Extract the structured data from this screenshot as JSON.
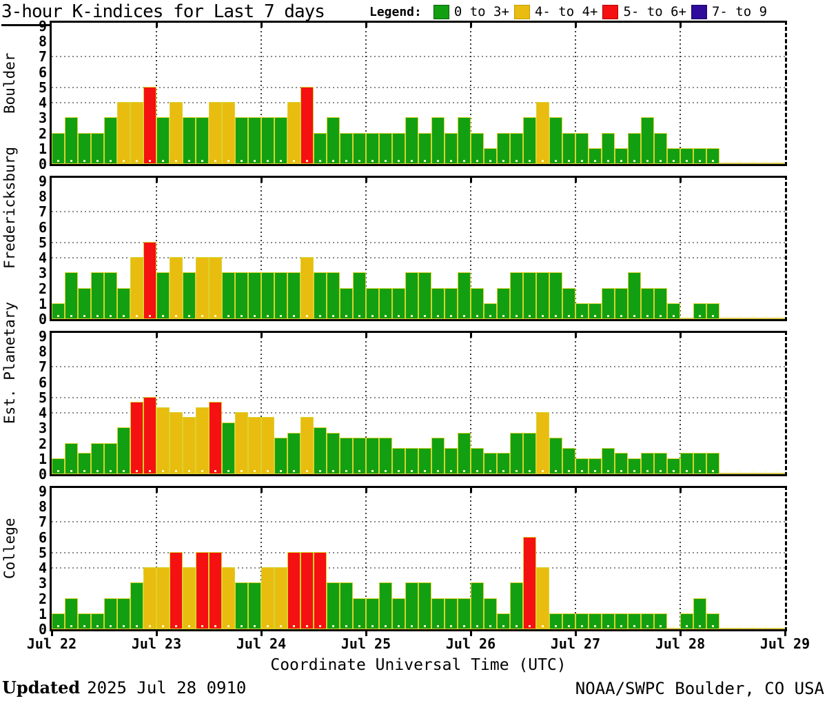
{
  "chart_data": {
    "type": "bar",
    "title": "3-hour K-indices for Last 7 days",
    "xlabel": "Coordinate Universal Time (UTC)",
    "x_ticks": [
      "Jul 22",
      "Jul 23",
      "Jul 24",
      "Jul 25",
      "Jul 26",
      "Jul 27",
      "Jul 28",
      "Jul 29"
    ],
    "y_ticks": [
      "9",
      "8",
      "7",
      "6",
      "5",
      "4",
      "3",
      "2",
      "1",
      "0"
    ],
    "ylim": [
      0,
      9
    ],
    "hgrid_at": [
      4,
      5,
      7
    ],
    "intervals_per_day": 8,
    "grid": "dotted",
    "legend": {
      "label": "Legend:",
      "items": [
        {
          "label": "0 to 3+",
          "color": "#12a012",
          "border": "#0a5c0a"
        },
        {
          "label": "4- to 4+",
          "color": "#e8bd10",
          "border": "#c09a00"
        },
        {
          "label": "5- to 6+",
          "color": "#f51111",
          "border": "#b00000"
        },
        {
          "label": "7- to 9",
          "color": "#2f0a9b",
          "border": "#1a0560"
        }
      ]
    },
    "color_rules": {
      "green_below": 3.5,
      "yellow_below": 4.5,
      "red_below": 6.5
    },
    "panels": [
      {
        "station": "Boulder",
        "values": [
          2,
          3,
          2,
          2,
          3,
          4,
          4,
          5,
          3,
          4,
          3,
          3,
          4,
          4,
          3,
          3,
          3,
          3,
          4,
          5,
          2,
          3,
          2,
          2,
          2,
          2,
          2,
          3,
          2,
          3,
          2,
          3,
          2,
          1,
          2,
          2,
          3,
          4,
          3,
          2,
          2,
          1,
          2,
          1,
          2,
          3,
          2,
          1,
          1,
          1,
          1,
          0,
          0,
          0,
          0,
          0
        ]
      },
      {
        "station": "Fredericksburg",
        "values": [
          1,
          3,
          2,
          3,
          3,
          2,
          4,
          5,
          3,
          4,
          3,
          4,
          4,
          3,
          3,
          3,
          3,
          3,
          3,
          4,
          3,
          3,
          2,
          3,
          2,
          2,
          2,
          3,
          3,
          2,
          2,
          3,
          2,
          1,
          2,
          3,
          3,
          3,
          3,
          2,
          1,
          1,
          2,
          2,
          3,
          2,
          2,
          1,
          0,
          1,
          1,
          0,
          0,
          0,
          0,
          0
        ]
      },
      {
        "station": "Est. Planetary",
        "values": [
          1,
          2,
          1.33,
          2,
          2,
          3,
          4.67,
          5,
          4.33,
          4,
          3.67,
          4.33,
          4.67,
          3.33,
          4,
          3.67,
          3.67,
          2.33,
          2.67,
          3.67,
          3,
          2.67,
          2.33,
          2.33,
          2.33,
          2.33,
          1.67,
          1.67,
          1.67,
          2.33,
          1.67,
          2.67,
          1.67,
          1.33,
          1.33,
          2.67,
          2.67,
          4,
          2.33,
          1.67,
          1,
          1,
          1.67,
          1.33,
          1,
          1.33,
          1.33,
          1,
          1.33,
          1.33,
          1.33,
          0,
          0,
          0,
          0,
          0
        ]
      },
      {
        "station": "College",
        "values": [
          1,
          2,
          1,
          1,
          2,
          2,
          3,
          4,
          4,
          5,
          4,
          5,
          5,
          4,
          3,
          3,
          4,
          4,
          5,
          5,
          5,
          3,
          3,
          2,
          2,
          3,
          2,
          3,
          3,
          2,
          2,
          2,
          3,
          2,
          1,
          3,
          6,
          4,
          1,
          1,
          1,
          1,
          1,
          1,
          1,
          1,
          1,
          0,
          1,
          2,
          1,
          0,
          0,
          0,
          0,
          0
        ]
      }
    ],
    "footer": {
      "updated_label": "Updated",
      "updated_value": "2025 Jul 28 0910",
      "credit": "NOAA/SWPC Boulder, CO USA"
    }
  },
  "colors": {
    "green": "#12a012",
    "yellow": "#e8bd10",
    "red": "#f51111",
    "purple": "#2f0a9b",
    "bar_border": "#d9d32e",
    "zero_bar": "#d8c94a",
    "frame": "#000000",
    "background": "#ffffff"
  }
}
